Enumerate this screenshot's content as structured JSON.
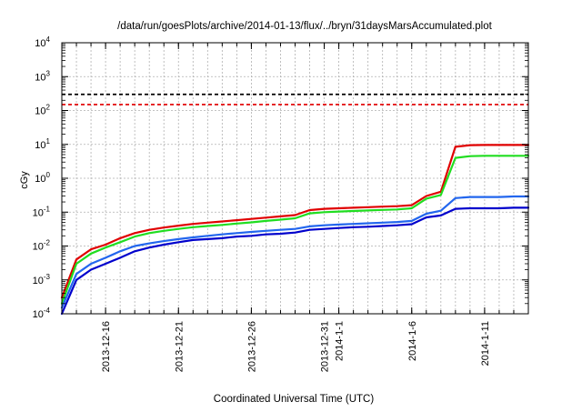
{
  "chart_data": {
    "type": "line",
    "title": "/data/run/goesPlots/archive/2014-01-13/flux/../bryn/31daysMarsAccumulated.plot",
    "xlabel": "Coordinated Universal Time (UTC)",
    "ylabel": "cGy",
    "x_ticks": [
      "2013-12-16",
      "2013-12-21",
      "2013-12-26",
      "2013-12-31",
      "2014-1-1",
      "2014-1-6",
      "2014-1-11"
    ],
    "y_ticks": [
      {
        "base": "10",
        "exp": "-4"
      },
      {
        "base": "10",
        "exp": "-3"
      },
      {
        "base": "10",
        "exp": "-2"
      },
      {
        "base": "10",
        "exp": "-1"
      },
      {
        "base": "10",
        "exp": "0"
      },
      {
        "base": "10",
        "exp": "1"
      },
      {
        "base": "10",
        "exp": "2"
      },
      {
        "base": "10",
        "exp": "3"
      },
      {
        "base": "10",
        "exp": "4"
      }
    ],
    "y_scale": "log",
    "xlim": [
      "2013-12-13",
      "2014-01-14"
    ],
    "ylim": [
      0.0001,
      10000
    ],
    "grid": true,
    "reference_lines": [
      {
        "value": 300,
        "color": "#000000",
        "style": "dashed"
      },
      {
        "value": 150,
        "color": "#e41a1c",
        "style": "dashed"
      }
    ],
    "series": [
      {
        "color": "#e00000",
        "x": [
          "2013-12-13",
          "2013-12-14",
          "2013-12-15",
          "2013-12-16",
          "2013-12-17",
          "2013-12-18",
          "2013-12-19",
          "2013-12-20",
          "2013-12-21",
          "2013-12-22",
          "2013-12-23",
          "2013-12-24",
          "2013-12-25",
          "2013-12-26",
          "2013-12-27",
          "2013-12-28",
          "2013-12-29",
          "2013-12-30",
          "2013-12-31",
          "2014-01-01",
          "2014-01-02",
          "2014-01-03",
          "2014-01-04",
          "2014-01-05",
          "2014-01-06",
          "2014-01-07",
          "2014-01-08",
          "2014-01-09",
          "2014-01-10",
          "2014-01-11",
          "2014-01-12",
          "2014-01-13",
          "2014-01-14"
        ],
        "values": [
          0.0003,
          0.004,
          0.008,
          0.011,
          0.017,
          0.024,
          0.03,
          0.035,
          0.04,
          0.045,
          0.049,
          0.053,
          0.058,
          0.063,
          0.069,
          0.075,
          0.082,
          0.115,
          0.125,
          0.13,
          0.135,
          0.14,
          0.145,
          0.15,
          0.16,
          0.3,
          0.4,
          8.5,
          9.5,
          9.6,
          9.6,
          9.6,
          9.6
        ]
      },
      {
        "color": "#20dd20",
        "x": [
          "2013-12-13",
          "2013-12-14",
          "2013-12-15",
          "2013-12-16",
          "2013-12-17",
          "2013-12-18",
          "2013-12-19",
          "2013-12-20",
          "2013-12-21",
          "2013-12-22",
          "2013-12-23",
          "2013-12-24",
          "2013-12-25",
          "2013-12-26",
          "2013-12-27",
          "2013-12-28",
          "2013-12-29",
          "2013-12-30",
          "2013-12-31",
          "2014-01-01",
          "2014-01-02",
          "2014-01-03",
          "2014-01-04",
          "2014-01-05",
          "2014-01-06",
          "2014-01-07",
          "2014-01-08",
          "2014-01-09",
          "2014-01-10",
          "2014-01-11",
          "2014-01-12",
          "2014-01-13",
          "2014-01-14"
        ],
        "values": [
          0.0002,
          0.003,
          0.006,
          0.009,
          0.013,
          0.019,
          0.024,
          0.028,
          0.032,
          0.036,
          0.039,
          0.042,
          0.046,
          0.05,
          0.055,
          0.06,
          0.066,
          0.092,
          0.1,
          0.104,
          0.108,
          0.112,
          0.116,
          0.12,
          0.13,
          0.25,
          0.32,
          4.0,
          4.5,
          4.6,
          4.6,
          4.6,
          4.6
        ]
      },
      {
        "color": "#2266ee",
        "x": [
          "2013-12-13",
          "2013-12-14",
          "2013-12-15",
          "2013-12-16",
          "2013-12-17",
          "2013-12-18",
          "2013-12-19",
          "2013-12-20",
          "2013-12-21",
          "2013-12-22",
          "2013-12-23",
          "2013-12-24",
          "2013-12-25",
          "2013-12-26",
          "2013-12-27",
          "2013-12-28",
          "2013-12-29",
          "2013-12-30",
          "2013-12-31",
          "2014-01-01",
          "2014-01-02",
          "2014-01-03",
          "2014-01-04",
          "2014-01-05",
          "2014-01-06",
          "2014-01-07",
          "2014-01-08",
          "2014-01-09",
          "2014-01-10",
          "2014-01-11",
          "2014-01-12",
          "2014-01-13",
          "2014-01-14"
        ],
        "values": [
          0.00015,
          0.0015,
          0.003,
          0.0045,
          0.007,
          0.01,
          0.012,
          0.014,
          0.016,
          0.018,
          0.02,
          0.022,
          0.024,
          0.026,
          0.028,
          0.03,
          0.032,
          0.038,
          0.041,
          0.043,
          0.045,
          0.047,
          0.049,
          0.051,
          0.055,
          0.09,
          0.11,
          0.26,
          0.28,
          0.28,
          0.28,
          0.29,
          0.29
        ]
      },
      {
        "color": "#0000cc",
        "x": [
          "2013-12-13",
          "2013-12-14",
          "2013-12-15",
          "2013-12-16",
          "2013-12-17",
          "2013-12-18",
          "2013-12-19",
          "2013-12-20",
          "2013-12-21",
          "2013-12-22",
          "2013-12-23",
          "2013-12-24",
          "2013-12-25",
          "2013-12-26",
          "2013-12-27",
          "2013-12-28",
          "2013-12-29",
          "2013-12-30",
          "2013-12-31",
          "2014-01-01",
          "2014-01-02",
          "2014-01-03",
          "2014-01-04",
          "2014-01-05",
          "2014-01-06",
          "2014-01-07",
          "2014-01-08",
          "2014-01-09",
          "2014-01-10",
          "2014-01-11",
          "2014-01-12",
          "2014-01-13",
          "2014-01-14"
        ],
        "values": [
          0.0001,
          0.001,
          0.002,
          0.003,
          0.0045,
          0.007,
          0.009,
          0.011,
          0.013,
          0.015,
          0.016,
          0.017,
          0.019,
          0.02,
          0.022,
          0.023,
          0.025,
          0.03,
          0.032,
          0.034,
          0.036,
          0.037,
          0.039,
          0.041,
          0.044,
          0.07,
          0.08,
          0.125,
          0.13,
          0.13,
          0.13,
          0.135,
          0.135
        ]
      }
    ]
  }
}
